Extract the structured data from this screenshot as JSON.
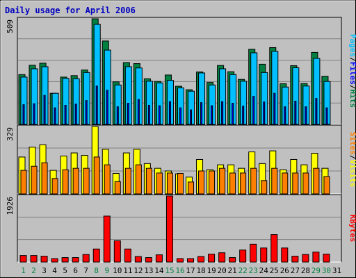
{
  "chart_data": [
    {
      "type": "bar",
      "title": "Daily usage for April 2006",
      "categories": [
        "1",
        "2",
        "3",
        "4",
        "5",
        "6",
        "7",
        "8",
        "9",
        "10",
        "11",
        "12",
        "13",
        "14",
        "15",
        "16",
        "17",
        "18",
        "19",
        "20",
        "21",
        "22",
        "23",
        "24",
        "25",
        "26",
        "27",
        "28",
        "29",
        "30",
        "31"
      ],
      "weekend_days": [
        "1",
        "2",
        "8",
        "9",
        "15",
        "16",
        "22",
        "23",
        "29",
        "30"
      ],
      "y_max_label": "509",
      "ylim": [
        0,
        509
      ],
      "series": [
        {
          "name": "Hits",
          "color": "#008040",
          "values": [
            240,
            285,
            295,
            150,
            228,
            235,
            262,
            509,
            402,
            205,
            298,
            293,
            220,
            207,
            238,
            184,
            167,
            253,
            202,
            284,
            254,
            217,
            362,
            290,
            370,
            196,
            283,
            197,
            347,
            232,
            0
          ]
        },
        {
          "name": "Files",
          "color": "#00c0ff",
          "values": [
            228,
            268,
            278,
            150,
            222,
            220,
            250,
            482,
            358,
            190,
            278,
            272,
            208,
            200,
            212,
            176,
            160,
            248,
            190,
            268,
            240,
            208,
            345,
            250,
            352,
            180,
            273,
            185,
            318,
            207,
            0
          ]
        },
        {
          "name": "Pages",
          "color": "#0000ff",
          "values": [
            95,
            100,
            140,
            80,
            92,
            98,
            115,
            185,
            165,
            85,
            102,
            120,
            92,
            90,
            110,
            80,
            70,
            105,
            90,
            110,
            102,
            88,
            135,
            108,
            150,
            85,
            112,
            85,
            125,
            80,
            0
          ]
        }
      ],
      "legend": [
        "Pages",
        "Files",
        "Hits"
      ],
      "legend_colors": [
        "#00c0ff",
        "#0000ff",
        "#008040"
      ]
    },
    {
      "type": "bar",
      "categories": [
        "1",
        "2",
        "3",
        "4",
        "5",
        "6",
        "7",
        "8",
        "9",
        "10",
        "11",
        "12",
        "13",
        "14",
        "15",
        "16",
        "17",
        "18",
        "19",
        "20",
        "21",
        "22",
        "23",
        "24",
        "25",
        "26",
        "27",
        "28",
        "29",
        "30",
        "31"
      ],
      "y_max_label": "329",
      "ylim": [
        0,
        329
      ],
      "series": [
        {
          "name": "Visits",
          "color": "#ffff00",
          "values": [
            180,
            228,
            240,
            115,
            185,
            200,
            188,
            329,
            218,
            100,
            200,
            218,
            148,
            125,
            112,
            98,
            82,
            168,
            118,
            142,
            142,
            125,
            205,
            148,
            210,
            118,
            168,
            142,
            198,
            125,
            0
          ]
        },
        {
          "name": "Sites",
          "color": "#ff8000",
          "values": [
            115,
            135,
            152,
            75,
            118,
            125,
            125,
            180,
            142,
            60,
            125,
            142,
            125,
            102,
            102,
            100,
            58,
            112,
            112,
            125,
            102,
            102,
            125,
            65,
            125,
            102,
            102,
            102,
            125,
            85,
            0
          ]
        }
      ],
      "legend": [
        "Sites",
        "Visits"
      ],
      "legend_colors": [
        "#ff8000",
        "#ffff00"
      ]
    },
    {
      "type": "bar",
      "categories": [
        "1",
        "2",
        "3",
        "4",
        "5",
        "6",
        "7",
        "8",
        "9",
        "10",
        "11",
        "12",
        "13",
        "14",
        "15",
        "16",
        "17",
        "18",
        "19",
        "20",
        "21",
        "22",
        "23",
        "24",
        "25",
        "26",
        "27",
        "28",
        "29",
        "30",
        "31"
      ],
      "y_max_label": "1926",
      "ylim": [
        0,
        1926
      ],
      "series": [
        {
          "name": "KBytes",
          "color": "#ff0000",
          "values": [
            190,
            190,
            170,
            100,
            130,
            130,
            220,
            380,
            1340,
            620,
            380,
            160,
            130,
            210,
            1926,
            100,
            100,
            160,
            230,
            270,
            130,
            350,
            520,
            410,
            800,
            410,
            170,
            220,
            290,
            230,
            0
          ]
        }
      ],
      "legend": [
        "KBytes"
      ],
      "legend_colors": [
        "#ff0000"
      ]
    }
  ]
}
